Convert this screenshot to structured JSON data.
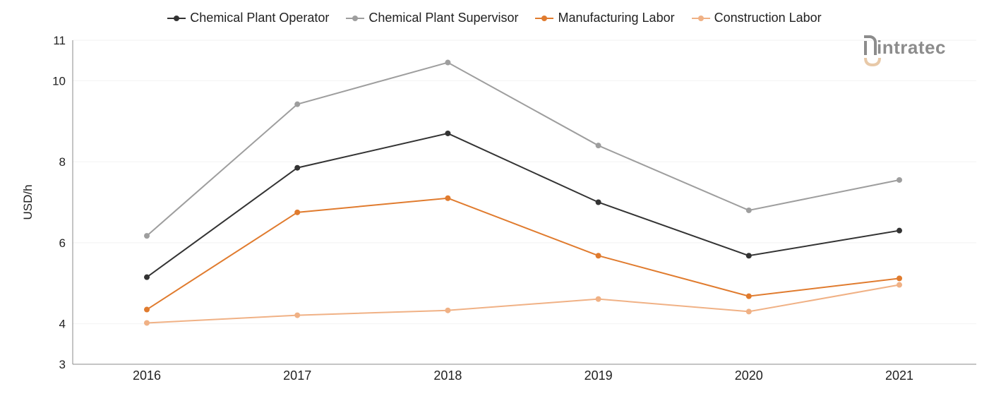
{
  "colors": {
    "operator": "#333333",
    "supervisor": "#9e9e9e",
    "manufacturing": "#e07b2e",
    "construction": "#f0b185",
    "axis": "#888888",
    "grid": "#f2f2f2",
    "logo_gray": "#8c8c8c",
    "logo_accent": "#e8c9a8"
  },
  "logo": {
    "text": "intratec"
  },
  "chart_data": {
    "type": "line",
    "xlabel": "",
    "ylabel": "USD/h",
    "x": [
      "2016",
      "2017",
      "2018",
      "2019",
      "2020",
      "2021"
    ],
    "ylim": [
      3,
      11
    ],
    "yticks": [
      3,
      4,
      6,
      8,
      10,
      11
    ],
    "grid": true,
    "legend_position": "top-center",
    "series": [
      {
        "name": "Chemical Plant Operator",
        "color": "#333333",
        "values": [
          5.15,
          7.85,
          8.7,
          7.0,
          5.68,
          6.3
        ]
      },
      {
        "name": "Chemical Plant Supervisor",
        "color": "#9e9e9e",
        "values": [
          6.17,
          9.42,
          10.45,
          8.4,
          6.8,
          7.55
        ]
      },
      {
        "name": "Manufacturing Labor",
        "color": "#e07b2e",
        "values": [
          4.35,
          6.75,
          7.1,
          5.68,
          4.68,
          5.12
        ]
      },
      {
        "name": "Construction Labor",
        "color": "#f0b185",
        "values": [
          4.02,
          4.21,
          4.33,
          4.61,
          4.3,
          4.96
        ]
      }
    ]
  }
}
